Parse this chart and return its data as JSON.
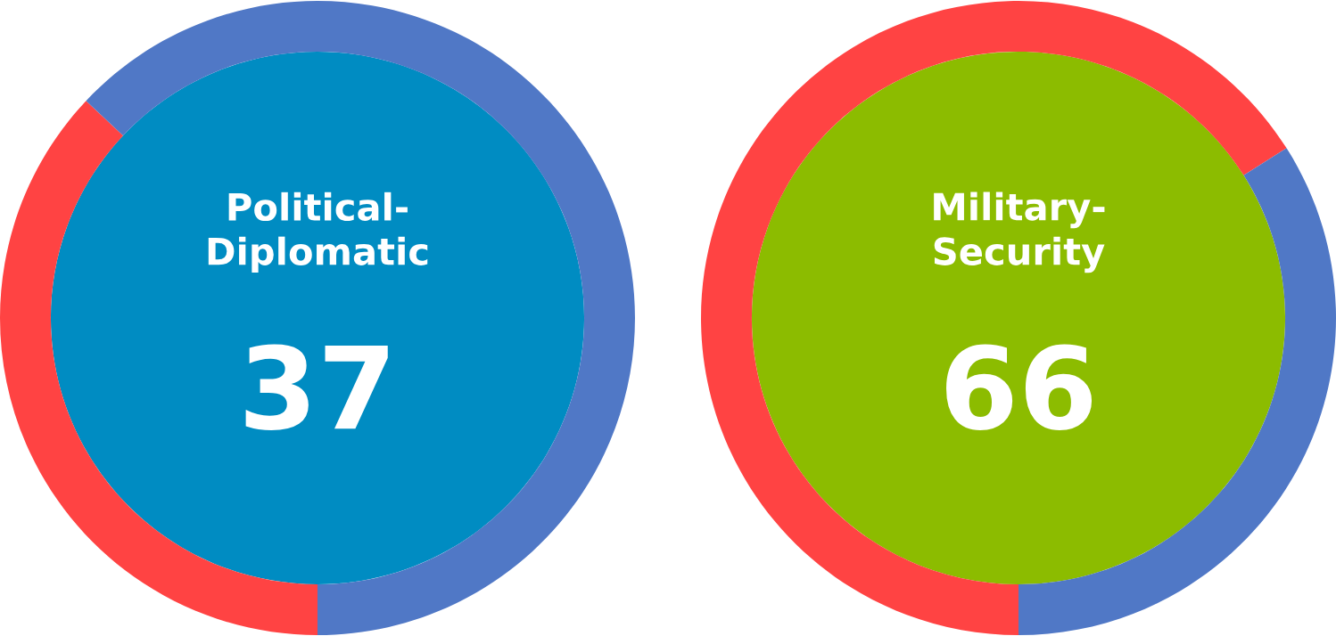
{
  "chart_data": [
    {
      "type": "donut",
      "title": "Political-\nDiplomatic",
      "categories": [
        null,
        null
      ],
      "values": [
        37,
        63
      ],
      "colors": [
        "#ff4343",
        "#5078c6"
      ],
      "value_labels": [
        "37",
        null
      ]
    },
    {
      "type": "donut",
      "title": "Military-\nSecurity",
      "categories": [
        null,
        null
      ],
      "values": [
        66,
        34
      ],
      "colors": [
        "#ff4343",
        "#5078c6"
      ],
      "value_labels": [
        "66",
        null
      ]
    }
  ]
}
